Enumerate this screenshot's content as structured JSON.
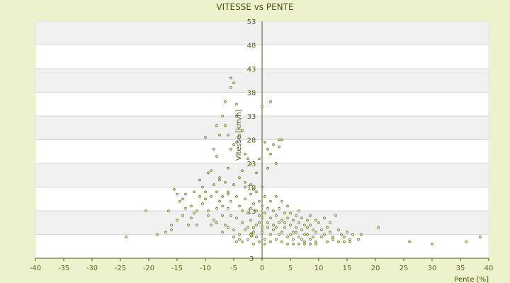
{
  "chart_data": {
    "type": "scatter",
    "title": "VITESSE vs PENTE",
    "xlabel": "Pente [%]",
    "ylabel": "Vitesse [km/h]",
    "xlim": [
      -40,
      40
    ],
    "ylim": [
      3,
      53
    ],
    "x_ticks": [
      "-40",
      "-35",
      "-30",
      "-25",
      "-20",
      "-15",
      "-10",
      "-5",
      "0",
      "5",
      "10",
      "15",
      "20",
      "25",
      "30",
      "35",
      "40"
    ],
    "y_ticks": [
      "3",
      "8",
      "13",
      "18",
      "23",
      "28",
      "33",
      "38",
      "43",
      "48",
      "53"
    ],
    "grid": true,
    "legend": "none",
    "colors": {
      "background": "#eef1cc",
      "plot_band_light": "#ffffff",
      "plot_band_dark": "#f0f0f0",
      "gridline": "#d8d8d8",
      "axis": "#4d5a14",
      "marker": "#6b7a1e",
      "text": "#5a6418"
    },
    "series": [
      {
        "points": [
          [
            -24,
            7.5
          ],
          [
            -20.5,
            13
          ],
          [
            -18.5,
            8
          ],
          [
            -17,
            8.5
          ],
          [
            -16.5,
            13
          ],
          [
            -16,
            10
          ],
          [
            -15.5,
            17.5
          ],
          [
            -15,
            16.5
          ],
          [
            -14.5,
            15
          ],
          [
            -14,
            15.5
          ],
          [
            -13.5,
            16.5
          ],
          [
            -13,
            10
          ],
          [
            -12.5,
            14
          ],
          [
            -12,
            12.5
          ],
          [
            -12,
            17
          ],
          [
            -11.5,
            13
          ],
          [
            -11,
            16
          ],
          [
            -11,
            19.5
          ],
          [
            -10.5,
            14.5
          ],
          [
            -10.5,
            18
          ],
          [
            -10,
            15.5
          ],
          [
            -10,
            17
          ],
          [
            -9.5,
            13
          ],
          [
            -9.5,
            12
          ],
          [
            -9,
            16
          ],
          [
            -9,
            21.5
          ],
          [
            -8.5,
            11
          ],
          [
            -8.5,
            18.5
          ],
          [
            -8,
            13.5
          ],
          [
            -8,
            17
          ],
          [
            -7.5,
            15
          ],
          [
            -7.5,
            20
          ],
          [
            -7,
            12
          ],
          [
            -7,
            14
          ],
          [
            -7,
            16
          ],
          [
            -6.5,
            10
          ],
          [
            -6.5,
            19
          ],
          [
            -6,
            22
          ],
          [
            -6,
            17
          ],
          [
            -6,
            13.5
          ],
          [
            -5.5,
            15
          ],
          [
            -5.5,
            12
          ],
          [
            -5,
            9
          ],
          [
            -5,
            18.5
          ],
          [
            -5,
            27
          ],
          [
            -4.5,
            11.5
          ],
          [
            -4.5,
            16
          ],
          [
            -4,
            14
          ],
          [
            -4,
            20
          ],
          [
            -3.5,
            10.5
          ],
          [
            -3.5,
            13
          ],
          [
            -3,
            15.5
          ],
          [
            -3,
            18
          ],
          [
            -2.5,
            9.5
          ],
          [
            -2.5,
            12.5
          ],
          [
            -2,
            16.5
          ],
          [
            -2,
            11
          ],
          [
            -2,
            23
          ],
          [
            -1.5,
            14.5
          ],
          [
            -1.5,
            8.5
          ],
          [
            -1,
            13
          ],
          [
            -1,
            17
          ],
          [
            -1,
            10
          ],
          [
            -0.5,
            12
          ],
          [
            -0.5,
            15
          ],
          [
            0,
            18
          ],
          [
            0,
            11.5
          ],
          [
            0,
            14
          ],
          [
            0,
            9.5
          ],
          [
            0.5,
            16
          ],
          [
            0.5,
            12.5
          ],
          [
            1,
            13.5
          ],
          [
            1,
            10.5
          ],
          [
            1,
            22
          ],
          [
            1.5,
            15
          ],
          [
            1.5,
            11.5
          ],
          [
            1.5,
            25
          ],
          [
            2,
            13
          ],
          [
            2,
            9
          ],
          [
            2.5,
            12
          ],
          [
            2.5,
            16
          ],
          [
            3,
            10.5
          ],
          [
            3,
            13.5
          ],
          [
            3,
            26.5
          ],
          [
            3.5,
            11
          ],
          [
            3.5,
            15
          ],
          [
            4,
            12.5
          ],
          [
            4,
            9.5
          ],
          [
            4.5,
            11.5
          ],
          [
            4.5,
            14
          ],
          [
            5,
            10
          ],
          [
            5,
            12.5
          ],
          [
            5.5,
            8.5
          ],
          [
            5.5,
            11
          ],
          [
            6,
            12
          ],
          [
            6,
            9.5
          ],
          [
            6.5,
            10.5
          ],
          [
            6.5,
            13
          ],
          [
            7,
            9
          ],
          [
            7,
            11.5
          ],
          [
            7.5,
            10
          ],
          [
            7.5,
            8
          ],
          [
            8,
            11
          ],
          [
            8,
            9.5
          ],
          [
            8.5,
            12
          ],
          [
            8.5,
            10
          ],
          [
            9,
            9
          ],
          [
            9,
            7.5
          ],
          [
            9.5,
            11
          ],
          [
            9.5,
            8.5
          ],
          [
            10,
            10.5
          ],
          [
            10.5,
            9
          ],
          [
            11,
            8
          ],
          [
            11,
            11.5
          ],
          [
            11.5,
            9.5
          ],
          [
            12,
            8.5
          ],
          [
            12,
            10.5
          ],
          [
            12.5,
            7.5
          ],
          [
            13,
            12
          ],
          [
            13.5,
            9
          ],
          [
            14,
            8
          ],
          [
            14.5,
            7.5
          ],
          [
            15,
            8.5
          ],
          [
            15.5,
            7
          ],
          [
            16,
            8
          ],
          [
            17,
            7
          ],
          [
            17.5,
            8
          ],
          [
            20.5,
            9.5
          ],
          [
            26,
            6.5
          ],
          [
            30,
            6
          ],
          [
            36,
            6.5
          ],
          [
            38.5,
            7.5
          ],
          [
            -5.5,
            41
          ],
          [
            -5,
            40
          ],
          [
            -6.5,
            36
          ],
          [
            -7,
            33
          ],
          [
            -6.5,
            31
          ],
          [
            -6,
            29
          ],
          [
            -5.5,
            26
          ],
          [
            -4.5,
            27.5
          ],
          [
            -4,
            29
          ],
          [
            -3.5,
            21.5
          ],
          [
            -3,
            19
          ],
          [
            -8,
            24.5
          ],
          [
            -8.5,
            26
          ],
          [
            -9.5,
            21
          ],
          [
            -7.5,
            19.5
          ],
          [
            -6,
            16.5
          ],
          [
            -5.5,
            39
          ],
          [
            -4.5,
            35.5
          ],
          [
            -3.5,
            30
          ],
          [
            -2.5,
            24
          ],
          [
            -2,
            18.5
          ],
          [
            -1.5,
            17.5
          ],
          [
            -1,
            21
          ],
          [
            -0.5,
            24
          ],
          [
            0.5,
            27.5
          ],
          [
            1,
            26
          ],
          [
            1.5,
            36
          ],
          [
            2,
            27
          ],
          [
            2.5,
            23
          ],
          [
            3.5,
            28
          ],
          [
            3,
            28
          ],
          [
            0,
            35
          ],
          [
            -10,
            28.5
          ],
          [
            -8,
            31
          ],
          [
            -7.5,
            29
          ],
          [
            -4.5,
            33
          ],
          [
            -3,
            25
          ],
          [
            -2,
            13.5
          ],
          [
            -1.5,
            9.5
          ],
          [
            -0.5,
            10.5
          ],
          [
            0.5,
            7
          ],
          [
            1.5,
            8
          ],
          [
            2.5,
            9.5
          ],
          [
            3.5,
            8.5
          ],
          [
            4.5,
            7.5
          ],
          [
            5.5,
            7
          ],
          [
            6.5,
            7.5
          ],
          [
            7.5,
            6.5
          ],
          [
            8.5,
            7
          ],
          [
            9.5,
            6.5
          ],
          [
            10.5,
            7.5
          ],
          [
            11.5,
            6.5
          ],
          [
            12.5,
            7
          ],
          [
            13.5,
            6.5
          ],
          [
            14.5,
            6.5
          ],
          [
            15.5,
            6.5
          ],
          [
            -11.5,
            10
          ],
          [
            -12.5,
            11.5
          ],
          [
            -13.5,
            13.5
          ],
          [
            -14,
            12
          ],
          [
            -15,
            11
          ],
          [
            -16,
            9
          ],
          [
            -9,
            10
          ],
          [
            -8,
            10.5
          ],
          [
            -7,
            8.5
          ],
          [
            -6,
            9.5
          ],
          [
            -5,
            7.5
          ],
          [
            -4,
            8
          ],
          [
            -3,
            9
          ],
          [
            -2,
            8
          ],
          [
            -1,
            7.5
          ],
          [
            0,
            8.5
          ],
          [
            1,
            9.5
          ],
          [
            2,
            10
          ],
          [
            3,
            8
          ],
          [
            4,
            10.5
          ],
          [
            5,
            8
          ],
          [
            6,
            8.5
          ],
          [
            7,
            7
          ],
          [
            8,
            8
          ],
          [
            -4.5,
            6.5
          ],
          [
            -4,
            7
          ],
          [
            -3.5,
            6.5
          ],
          [
            -2.5,
            7
          ],
          [
            -1.5,
            6
          ],
          [
            -0.5,
            6.5
          ],
          [
            0.5,
            6
          ],
          [
            1.5,
            6.5
          ],
          [
            2.5,
            7
          ],
          [
            3.5,
            6.5
          ],
          [
            4.5,
            6
          ],
          [
            5.5,
            6
          ],
          [
            6.5,
            6
          ],
          [
            7.5,
            6
          ],
          [
            8.5,
            6
          ],
          [
            9.5,
            6
          ]
        ]
      }
    ]
  }
}
